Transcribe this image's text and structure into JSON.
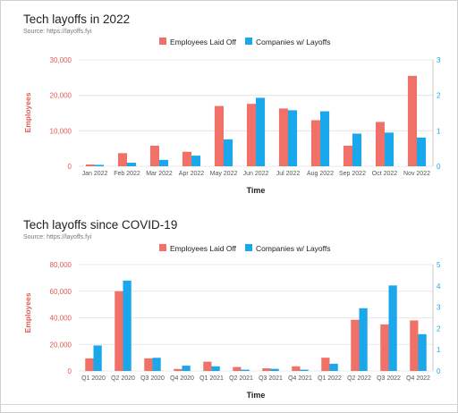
{
  "colors": {
    "laid_off": "#f07167",
    "companies": "#1aa7ec",
    "left_axis": "#e05a52",
    "right_axis": "#1aa7ec",
    "grid": "#e0e0e0",
    "tick": "#555555"
  },
  "chart_data": [
    {
      "type": "bar",
      "title": "Tech layoffs in 2022",
      "subtitle": "Source: https://layoffs.fyi",
      "xlabel": "Time",
      "ylabel": "Employees",
      "ylim": [
        0,
        30000
      ],
      "y_ticks": [
        "0",
        "10,000",
        "20,000",
        "30,000"
      ],
      "y2lim": [
        0,
        3
      ],
      "y2_ticks": [
        "0",
        "1",
        "2",
        "3"
      ],
      "legend": "top-center",
      "grid": true,
      "categories": [
        "Jan 2022",
        "Feb 2022",
        "Mar 2022",
        "Apr 2022",
        "May 2022",
        "Jun 2022",
        "Jul 2022",
        "Aug 2022",
        "Sep 2022",
        "Oct 2022",
        "Nov 2022"
      ],
      "series": [
        {
          "name": "Employees Laid Off",
          "axis": "left",
          "values": [
            500,
            3700,
            5800,
            4100,
            17000,
            17600,
            16300,
            13000,
            5800,
            12500,
            25500
          ]
        },
        {
          "name": "Companies w/ Layoffs",
          "axis": "right",
          "values": [
            0.04,
            0.1,
            0.18,
            0.3,
            0.76,
            1.93,
            1.58,
            1.55,
            0.92,
            0.95,
            0.81
          ]
        }
      ]
    },
    {
      "type": "bar",
      "title": "Tech layoffs since COVID-19",
      "subtitle": "Source: https://layoffs.fyi",
      "xlabel": "Time",
      "ylabel": "Employees",
      "ylim": [
        0,
        80000
      ],
      "y_ticks": [
        "0",
        "20,000",
        "40,000",
        "60,000",
        "80,000"
      ],
      "y2lim": [
        0,
        5
      ],
      "y2_ticks": [
        "0",
        "1",
        "2",
        "3",
        "4",
        "5"
      ],
      "legend": "top-center",
      "grid": true,
      "categories": [
        "Q1 2020",
        "Q2 2020",
        "Q3 2020",
        "Q4 2020",
        "Q1 2021",
        "Q2 2021",
        "Q3 2021",
        "Q4 2021",
        "Q1 2022",
        "Q2 2022",
        "Q3 2022",
        "Q4 2022"
      ],
      "series": [
        {
          "name": "Employees Laid Off",
          "axis": "left",
          "values": [
            9500,
            60000,
            9500,
            1500,
            7000,
            3000,
            2000,
            3500,
            10000,
            38500,
            35000,
            38000
          ]
        },
        {
          "name": "Companies w/ Layoffs",
          "axis": "right",
          "values": [
            1.2,
            4.25,
            0.62,
            0.25,
            0.22,
            0.06,
            0.1,
            0.06,
            0.34,
            2.95,
            4.02,
            1.73
          ]
        }
      ]
    }
  ]
}
